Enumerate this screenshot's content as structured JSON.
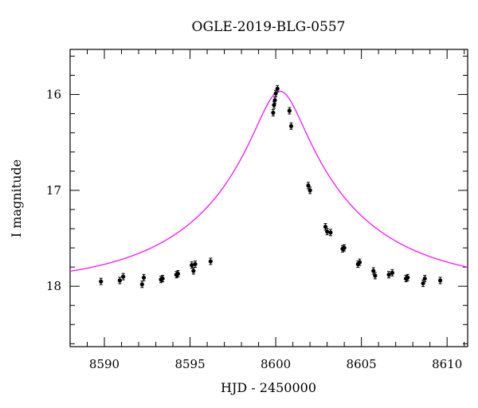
{
  "chart_data": {
    "type": "scatter",
    "title": "OGLE-2019-BLG-0557",
    "xlabel": "HJD - 2450000",
    "ylabel": "I magnitude",
    "xlim": [
      8588.0,
      8611.2
    ],
    "ylim": [
      18.63,
      15.53
    ],
    "y_inverted": true,
    "x_ticks": [
      8590,
      8595,
      8600,
      8605,
      8610
    ],
    "y_ticks": [
      16,
      17,
      18
    ],
    "grid": false,
    "model_color": "#ff00ff",
    "point_color": "#000000",
    "model": {
      "t0": 8600.25,
      "u0": 0.155,
      "tE": 8.7,
      "baseline_mag": 18.0
    },
    "points": [
      {
        "x": 8589.8,
        "y": 17.95
      },
      {
        "x": 8590.9,
        "y": 17.94
      },
      {
        "x": 8591.1,
        "y": 17.9
      },
      {
        "x": 8592.2,
        "y": 17.98
      },
      {
        "x": 8592.3,
        "y": 17.91
      },
      {
        "x": 8593.3,
        "y": 17.93
      },
      {
        "x": 8593.4,
        "y": 17.92
      },
      {
        "x": 8594.2,
        "y": 17.88
      },
      {
        "x": 8594.3,
        "y": 17.87
      },
      {
        "x": 8595.1,
        "y": 17.78
      },
      {
        "x": 8595.2,
        "y": 17.84
      },
      {
        "x": 8595.3,
        "y": 17.77
      },
      {
        "x": 8596.2,
        "y": 17.74
      },
      {
        "x": 8599.85,
        "y": 16.19
      },
      {
        "x": 8599.9,
        "y": 16.11
      },
      {
        "x": 8599.95,
        "y": 16.06
      },
      {
        "x": 8600.0,
        "y": 15.99
      },
      {
        "x": 8600.1,
        "y": 15.94
      },
      {
        "x": 8600.8,
        "y": 16.17
      },
      {
        "x": 8600.9,
        "y": 16.33
      },
      {
        "x": 8601.9,
        "y": 16.95
      },
      {
        "x": 8602.0,
        "y": 17.0
      },
      {
        "x": 8602.9,
        "y": 17.38
      },
      {
        "x": 8603.0,
        "y": 17.43
      },
      {
        "x": 8603.2,
        "y": 17.44
      },
      {
        "x": 8603.9,
        "y": 17.61
      },
      {
        "x": 8604.0,
        "y": 17.6
      },
      {
        "x": 8604.8,
        "y": 17.77
      },
      {
        "x": 8604.9,
        "y": 17.75
      },
      {
        "x": 8605.7,
        "y": 17.84
      },
      {
        "x": 8605.8,
        "y": 17.89
      },
      {
        "x": 8606.6,
        "y": 17.88
      },
      {
        "x": 8606.8,
        "y": 17.86
      },
      {
        "x": 8607.6,
        "y": 17.92
      },
      {
        "x": 8607.7,
        "y": 17.91
      },
      {
        "x": 8608.6,
        "y": 17.97
      },
      {
        "x": 8608.7,
        "y": 17.92
      },
      {
        "x": 8609.6,
        "y": 17.94
      }
    ]
  }
}
